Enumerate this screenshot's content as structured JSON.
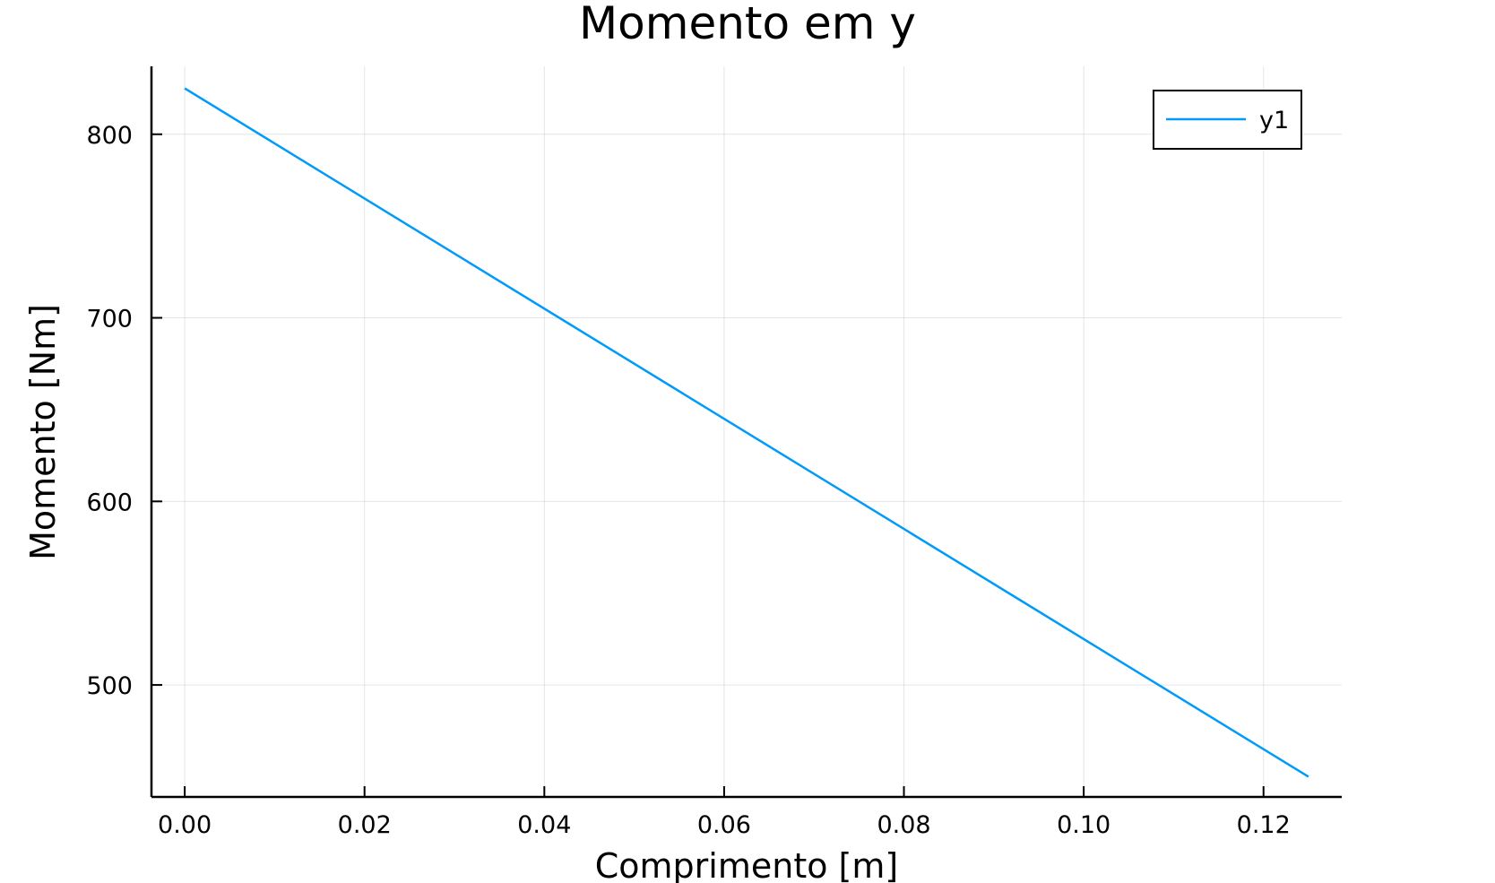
{
  "chart_data": {
    "type": "line",
    "title": "Momento em y",
    "xlabel": "Comprimento [m]",
    "ylabel": "Momento [Nm]",
    "xlim": [
      -0.0037,
      0.1287
    ],
    "ylim": [
      439,
      837
    ],
    "x_ticks": [
      0.0,
      0.02,
      0.04,
      0.06,
      0.08,
      0.1,
      0.12
    ],
    "x_tick_labels": [
      "0.00",
      "0.02",
      "0.04",
      "0.06",
      "0.08",
      "0.10",
      "0.12"
    ],
    "y_ticks": [
      500,
      600,
      700,
      800
    ],
    "y_tick_labels": [
      "500",
      "600",
      "700",
      "800"
    ],
    "grid": true,
    "legend_position": "top-right",
    "series": [
      {
        "name": "y1",
        "color": "#009af9",
        "x": [
          0.0,
          0.125
        ],
        "y": [
          825,
          450
        ]
      }
    ]
  }
}
